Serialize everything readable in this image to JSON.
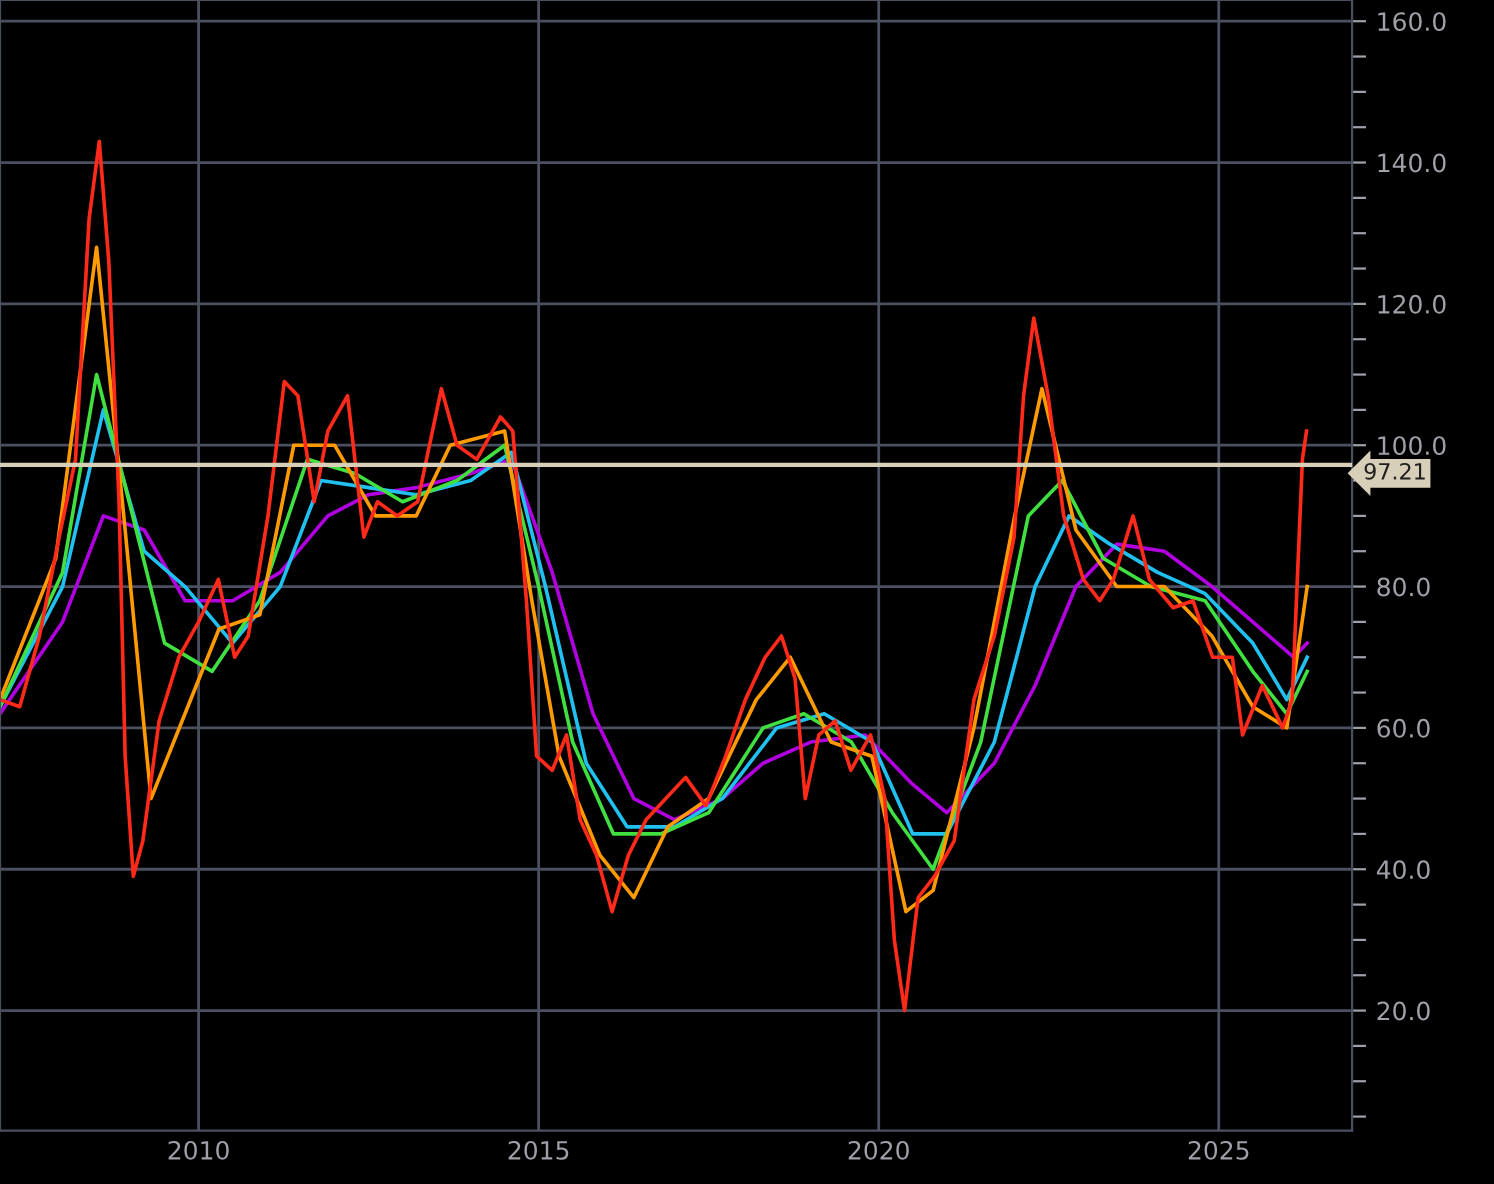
{
  "chart_data": {
    "type": "line",
    "xlim": [
      2007.08,
      2026.96
    ],
    "xticks": [
      2010,
      2015,
      2020,
      2025
    ],
    "ylim": [
      3,
      163
    ],
    "yticks": [
      {
        "value": 5,
        "label": null
      },
      {
        "value": 10,
        "label": null
      },
      {
        "value": 15,
        "label": null
      },
      {
        "value": 20,
        "label": "20.0"
      },
      {
        "value": 25,
        "label": null
      },
      {
        "value": 30,
        "label": null
      },
      {
        "value": 35,
        "label": null
      },
      {
        "value": 40,
        "label": "40.0"
      },
      {
        "value": 45,
        "label": null
      },
      {
        "value": 50,
        "label": null
      },
      {
        "value": 55,
        "label": null
      },
      {
        "value": 60,
        "label": "60.0"
      },
      {
        "value": 65,
        "label": null
      },
      {
        "value": 70,
        "label": null
      },
      {
        "value": 75,
        "label": null
      },
      {
        "value": 80,
        "label": "80.0"
      },
      {
        "value": 85,
        "label": null
      },
      {
        "value": 90,
        "label": null
      },
      {
        "value": 95,
        "label": null
      },
      {
        "value": 100,
        "label": "100.0"
      },
      {
        "value": 105,
        "label": null
      },
      {
        "value": 110,
        "label": null
      },
      {
        "value": 115,
        "label": null
      },
      {
        "value": 120,
        "label": "120.0"
      },
      {
        "value": 125,
        "label": null
      },
      {
        "value": 130,
        "label": null
      },
      {
        "value": 135,
        "label": null
      },
      {
        "value": 140,
        "label": "140.0"
      },
      {
        "value": 145,
        "label": null
      },
      {
        "value": 150,
        "label": null
      },
      {
        "value": 155,
        "label": null
      },
      {
        "value": 160,
        "label": "160.0"
      }
    ],
    "grid": true,
    "marker": "none",
    "line_style": "solid",
    "ref_lines": [
      {
        "axis": "y",
        "value": 97.21,
        "label": "97.21",
        "color": "#d8cfb8"
      }
    ],
    "series": [
      {
        "color": "#b000e0",
        "x": [
          2007.08,
          2008.0,
          2008.6,
          2009.2,
          2009.8,
          2010.5,
          2011.2,
          2011.9,
          2012.5,
          2013.2,
          2014.0,
          2014.6,
          2015.2,
          2015.8,
          2016.4,
          2017.0,
          2017.7,
          2018.3,
          2019.0,
          2019.8,
          2020.5,
          2021.0,
          2021.7,
          2022.3,
          2022.9,
          2023.5,
          2024.2,
          2024.9,
          2025.5,
          2026.1,
          2026.3
        ],
        "values": [
          62,
          75,
          90,
          88,
          78,
          78,
          82,
          90,
          93,
          94,
          96,
          98,
          82,
          62,
          50,
          47,
          50,
          55,
          58,
          59,
          52,
          48,
          55,
          66,
          80,
          86,
          85,
          80,
          75,
          70,
          72
        ]
      },
      {
        "color": "#20c0f0",
        "x": [
          2007.08,
          2008.0,
          2008.6,
          2009.2,
          2009.8,
          2010.5,
          2011.2,
          2011.8,
          2012.5,
          2013.2,
          2014.0,
          2014.6,
          2015.1,
          2015.7,
          2016.3,
          2017.0,
          2017.7,
          2018.5,
          2019.2,
          2019.9,
          2020.5,
          2021.0,
          2021.7,
          2022.3,
          2022.8,
          2023.4,
          2024.1,
          2024.8,
          2025.5,
          2026.0,
          2026.3
        ],
        "values": [
          63,
          80,
          105,
          85,
          80,
          72,
          80,
          95,
          94,
          93,
          95,
          99,
          80,
          55,
          46,
          46,
          50,
          60,
          62,
          58,
          45,
          45,
          58,
          80,
          90,
          86,
          82,
          79,
          72,
          64,
          70
        ]
      },
      {
        "color": "#40e040",
        "x": [
          2007.08,
          2008.0,
          2008.5,
          2008.9,
          2009.5,
          2010.2,
          2010.9,
          2011.6,
          2012.3,
          2013.0,
          2013.8,
          2014.5,
          2015.0,
          2015.5,
          2016.1,
          2016.8,
          2017.5,
          2018.3,
          2018.9,
          2019.6,
          2020.2,
          2020.8,
          2021.5,
          2022.2,
          2022.7,
          2023.3,
          2024.0,
          2024.8,
          2025.5,
          2026.0,
          2026.3
        ],
        "values": [
          63,
          82,
          110,
          95,
          72,
          68,
          78,
          98,
          96,
          92,
          95,
          100,
          80,
          58,
          45,
          45,
          48,
          60,
          62,
          58,
          48,
          40,
          58,
          90,
          95,
          84,
          80,
          78,
          68,
          62,
          68
        ]
      },
      {
        "color": "#ff9a00",
        "x": [
          2007.08,
          2007.9,
          2008.5,
          2008.9,
          2009.3,
          2009.8,
          2010.3,
          2010.9,
          2011.4,
          2012.0,
          2012.6,
          2013.2,
          2013.7,
          2014.5,
          2014.9,
          2015.3,
          2015.9,
          2016.4,
          2016.9,
          2017.5,
          2018.2,
          2018.7,
          2019.3,
          2019.9,
          2020.4,
          2020.8,
          2021.4,
          2022.0,
          2022.4,
          2022.9,
          2023.5,
          2024.2,
          2024.9,
          2025.5,
          2026.0,
          2026.3
        ],
        "values": [
          64,
          84,
          128,
          90,
          50,
          62,
          74,
          76,
          100,
          100,
          90,
          90,
          100,
          102,
          78,
          56,
          42,
          36,
          46,
          50,
          64,
          70,
          58,
          56,
          34,
          37,
          60,
          90,
          108,
          88,
          80,
          80,
          73,
          63,
          60,
          80
        ]
      },
      {
        "color": "#ff2a1a",
        "x": [
          2007.08,
          2007.37,
          2007.66,
          2007.95,
          2008.19,
          2008.39,
          2008.54,
          2008.68,
          2008.83,
          2008.92,
          2009.04,
          2009.18,
          2009.42,
          2009.71,
          2010.0,
          2010.29,
          2010.53,
          2010.73,
          2011.02,
          2011.26,
          2011.46,
          2011.7,
          2011.9,
          2012.19,
          2012.43,
          2012.63,
          2012.92,
          2013.22,
          2013.57,
          2013.8,
          2014.09,
          2014.44,
          2014.62,
          2014.82,
          2014.97,
          2015.2,
          2015.41,
          2015.61,
          2015.85,
          2016.08,
          2016.32,
          2016.58,
          2016.87,
          2017.16,
          2017.46,
          2017.75,
          2018.04,
          2018.33,
          2018.57,
          2018.77,
          2018.92,
          2019.12,
          2019.36,
          2019.59,
          2019.88,
          2020.09,
          2020.23,
          2020.38,
          2020.58,
          2020.82,
          2021.11,
          2021.4,
          2021.7,
          2021.99,
          2022.13,
          2022.28,
          2022.49,
          2022.72,
          2023.01,
          2023.25,
          2023.45,
          2023.74,
          2023.98,
          2024.33,
          2024.62,
          2024.91,
          2025.2,
          2025.35,
          2025.64,
          2025.94,
          2026.08,
          2026.23,
          2026.29
        ],
        "values": [
          64,
          63,
          73,
          87,
          98,
          132,
          143,
          126,
          92,
          56,
          39,
          44,
          61,
          70,
          75,
          81,
          70,
          73,
          90,
          109,
          107,
          92,
          102,
          107,
          87,
          92,
          90,
          92,
          108,
          100,
          98,
          104,
          102,
          78,
          56,
          54,
          59,
          47,
          42,
          34,
          42,
          47,
          50,
          53,
          49,
          56,
          64,
          70,
          73,
          67,
          50,
          59,
          61,
          54,
          59,
          50,
          30,
          20,
          36,
          39,
          44,
          64,
          73,
          87,
          107,
          118,
          107,
          90,
          81,
          78,
          81,
          90,
          81,
          77,
          78,
          70,
          70,
          59,
          66,
          60,
          64,
          98,
          102
        ]
      }
    ]
  }
}
